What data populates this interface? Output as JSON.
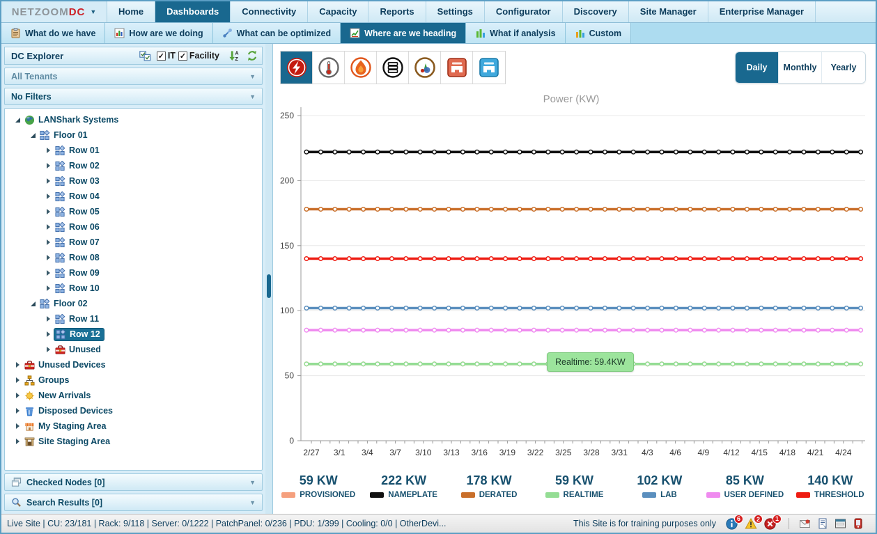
{
  "header": {
    "logo": {
      "text_primary": "NETZOOM",
      "text_accent": "DC",
      "caret": "▼"
    },
    "tabs": [
      {
        "label": "Home"
      },
      {
        "label": "Dashboards",
        "active": true
      },
      {
        "label": "Connectivity"
      },
      {
        "label": "Capacity"
      },
      {
        "label": "Reports"
      },
      {
        "label": "Settings"
      },
      {
        "label": "Configurator"
      },
      {
        "label": "Discovery"
      },
      {
        "label": "Site Manager"
      },
      {
        "label": "Enterprise Manager"
      }
    ],
    "subtabs": [
      {
        "label": "What do we have",
        "icon": "clipboard"
      },
      {
        "label": "How are we doing",
        "icon": "bar-chart-window"
      },
      {
        "label": "What can be optimized",
        "icon": "tools"
      },
      {
        "label": "Where are we heading",
        "icon": "trend-chart",
        "active": true
      },
      {
        "label": "What if analysis",
        "icon": "bars-green"
      },
      {
        "label": "Custom",
        "icon": "bars-multi"
      }
    ]
  },
  "sidebar": {
    "panel_title": "DC Explorer",
    "checkboxes": [
      {
        "label": "IT",
        "checked": true
      },
      {
        "label": "Facility",
        "checked": true
      }
    ],
    "dropdowns": [
      {
        "label": "All Tenants",
        "muted": true
      },
      {
        "label": "No Filters",
        "muted": false
      }
    ],
    "tree": [
      {
        "label": "LANShark Systems",
        "icon": "globe",
        "level": 0,
        "state": "expanded"
      },
      {
        "label": "Floor 01",
        "icon": "rack-group",
        "level": 1,
        "state": "expanded"
      },
      {
        "label": "Row 01",
        "icon": "rack-group",
        "level": 2,
        "state": "collapsed"
      },
      {
        "label": "Row 02",
        "icon": "rack-group",
        "level": 2,
        "state": "collapsed"
      },
      {
        "label": "Row 03",
        "icon": "rack-group",
        "level": 2,
        "state": "collapsed"
      },
      {
        "label": "Row 04",
        "icon": "rack-group",
        "level": 2,
        "state": "collapsed"
      },
      {
        "label": "Row 05",
        "icon": "rack-group",
        "level": 2,
        "state": "collapsed"
      },
      {
        "label": "Row 06",
        "icon": "rack-group",
        "level": 2,
        "state": "collapsed"
      },
      {
        "label": "Row 07",
        "icon": "rack-group",
        "level": 2,
        "state": "collapsed"
      },
      {
        "label": "Row 08",
        "icon": "rack-group",
        "level": 2,
        "state": "collapsed"
      },
      {
        "label": "Row 09",
        "icon": "rack-group",
        "level": 2,
        "state": "collapsed"
      },
      {
        "label": "Row 10",
        "icon": "rack-group",
        "level": 2,
        "state": "collapsed"
      },
      {
        "label": "Floor 02",
        "icon": "rack-group",
        "level": 1,
        "state": "expanded"
      },
      {
        "label": "Row 11",
        "icon": "rack-group",
        "level": 2,
        "state": "collapsed"
      },
      {
        "label": "Row 12",
        "icon": "rack-group",
        "level": 2,
        "state": "collapsed",
        "selected": true
      },
      {
        "label": "Unused",
        "icon": "toolbox",
        "level": 2,
        "state": "collapsed"
      },
      {
        "label": "Unused Devices",
        "icon": "toolbox",
        "level": 0,
        "state": "collapsed"
      },
      {
        "label": "Groups",
        "icon": "org-chart",
        "level": 0,
        "state": "collapsed"
      },
      {
        "label": "New Arrivals",
        "icon": "sun",
        "level": 0,
        "state": "collapsed"
      },
      {
        "label": "Disposed Devices",
        "icon": "trash",
        "level": 0,
        "state": "collapsed"
      },
      {
        "label": "My Staging Area",
        "icon": "store",
        "level": 0,
        "state": "collapsed"
      },
      {
        "label": "Site Staging Area",
        "icon": "gate",
        "level": 0,
        "state": "collapsed"
      }
    ],
    "collapsed_panels": [
      {
        "label": "Checked Nodes [0]",
        "icon": "stacked-windows"
      },
      {
        "label": "Search Results [0]",
        "icon": "magnifier"
      }
    ]
  },
  "toolbar": {
    "metric_icons": [
      {
        "name": "power",
        "active": true
      },
      {
        "name": "temperature",
        "active": false
      },
      {
        "name": "heat",
        "active": false
      },
      {
        "name": "server",
        "active": false
      },
      {
        "name": "capacity",
        "active": false
      },
      {
        "name": "port-red",
        "active": false
      },
      {
        "name": "port-blue",
        "active": false
      }
    ],
    "period_buttons": [
      {
        "label": "Daily",
        "active": true
      },
      {
        "label": "Monthly",
        "active": false
      },
      {
        "label": "Yearly",
        "active": false
      }
    ]
  },
  "chart_data": {
    "type": "line",
    "title": "Power (KW)",
    "xlabel": "",
    "ylabel": "",
    "ylim": [
      0,
      250
    ],
    "yticks": [
      0,
      50,
      100,
      150,
      200,
      250
    ],
    "x_labels": [
      "2/27",
      "3/1",
      "3/4",
      "3/7",
      "3/10",
      "3/13",
      "3/16",
      "3/19",
      "3/22",
      "3/25",
      "3/28",
      "3/31",
      "4/3",
      "4/6",
      "4/9",
      "4/12",
      "4/15",
      "4/18",
      "4/21",
      "4/24"
    ],
    "days_per_label": 3,
    "grid": true,
    "legend_position": "bottom",
    "series": [
      {
        "name": "PROVISIONED",
        "value": 59,
        "color": "#f5a07e"
      },
      {
        "name": "NAMEPLATE",
        "value": 222,
        "color": "#111111"
      },
      {
        "name": "DERATED",
        "value": 178,
        "color": "#c96f2a"
      },
      {
        "name": "THRESHOLD",
        "value": 140,
        "color": "#ee1c12"
      },
      {
        "name": "LAB",
        "value": 102,
        "color": "#5b8fbe"
      },
      {
        "name": "USER DEFINED",
        "value": 85,
        "color": "#ef8bef"
      },
      {
        "name": "REALTIME",
        "value": 59,
        "color": "#94dd94"
      }
    ],
    "tooltip": "Realtime: 59.4KW"
  },
  "legend": [
    {
      "value": "59 KW",
      "label": "PROVISIONED",
      "color": "#f5a07e"
    },
    {
      "value": "222 KW",
      "label": "NAMEPLATE",
      "color": "#111111"
    },
    {
      "value": "178 KW",
      "label": "DERATED",
      "color": "#c96f2a"
    },
    {
      "value": "59 KW",
      "label": "REALTIME",
      "color": "#94dd94"
    },
    {
      "value": "102 KW",
      "label": "LAB",
      "color": "#5b8fbe"
    },
    {
      "value": "85 KW",
      "label": "USER DEFINED",
      "color": "#ef8bef"
    },
    {
      "value": "140 KW",
      "label": "THRESHOLD",
      "color": "#ee1c12"
    }
  ],
  "statusbar": {
    "left_text": "Live Site | CU: 23/181 | Rack: 9/118 | Server: 0/1222 | PatchPanel: 0/236 | PDU: 1/399 | Cooling: 0/0 | OtherDevi...",
    "notice": "This Site is for training purposes only",
    "alerts": [
      {
        "type": "info",
        "count": "6"
      },
      {
        "type": "warning",
        "count": "2"
      },
      {
        "type": "error",
        "count": "1"
      }
    ],
    "tray_icons": [
      "mail",
      "notes",
      "window",
      "device"
    ]
  }
}
